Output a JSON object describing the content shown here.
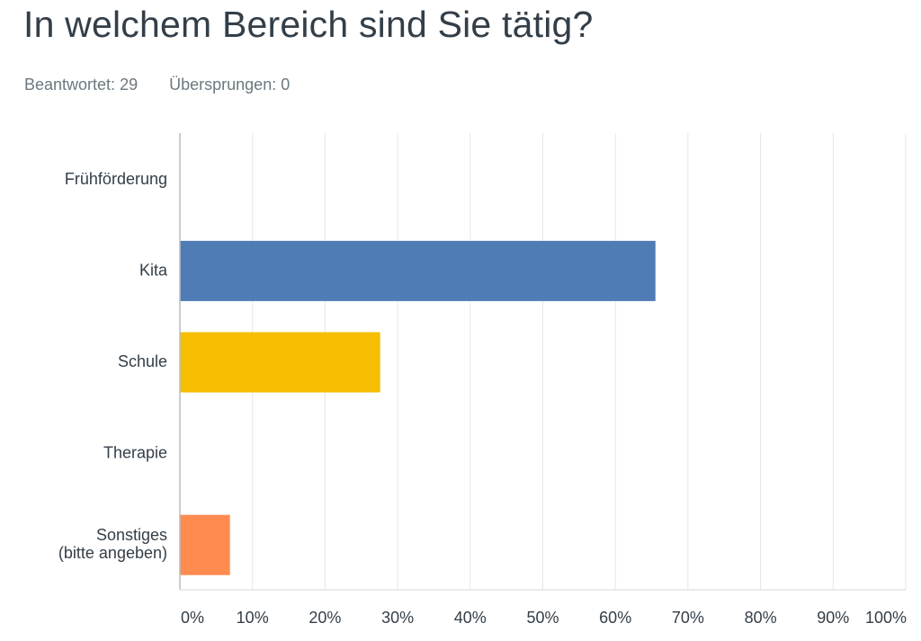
{
  "question": {
    "title": "In welchem Bereich sind Sie tätig?"
  },
  "stats": {
    "answered_label": "Beantwortet:",
    "answered_value": "29",
    "skipped_label": "Übersprungen:",
    "skipped_value": "0"
  },
  "chart_data": {
    "type": "bar",
    "orientation": "horizontal",
    "categories": [
      [
        "Frühförderung"
      ],
      [
        "Kita"
      ],
      [
        "Schule"
      ],
      [
        "Therapie"
      ],
      [
        "Sonstiges",
        "(bitte angeben)"
      ]
    ],
    "values": [
      0,
      65.52,
      27.59,
      0,
      6.9
    ],
    "colors": [
      "#507cb6",
      "#507cb6",
      "#f7bd00",
      "#6bc8cd",
      "#ff8b4f"
    ],
    "xlim": [
      0,
      100
    ],
    "x_ticks": [
      "0%",
      "10%",
      "20%",
      "30%",
      "40%",
      "50%",
      "60%",
      "70%",
      "80%",
      "90%",
      "100%"
    ],
    "grid": true,
    "xlabel": "",
    "ylabel": ""
  }
}
